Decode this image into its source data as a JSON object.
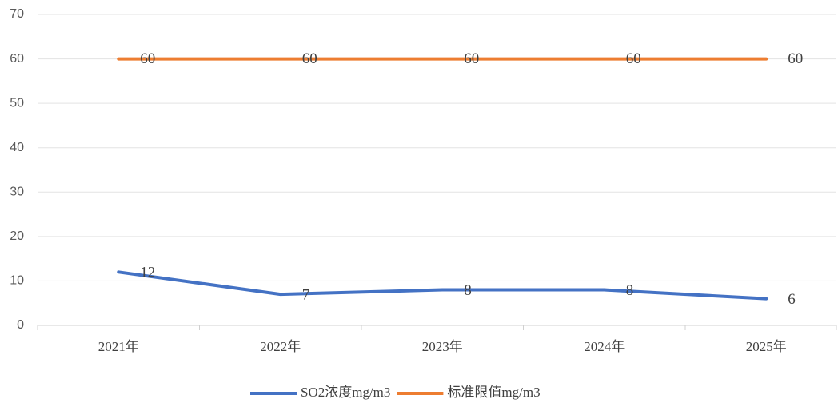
{
  "chart_data": {
    "type": "line",
    "categories": [
      "2021年",
      "2022年",
      "2023年",
      "2024年",
      "2025年"
    ],
    "series": [
      {
        "name": "SO2浓度mg/m3",
        "color": "#4472c4",
        "values": [
          12,
          7,
          8,
          8,
          6
        ]
      },
      {
        "name": "标准限值mg/m3",
        "color": "#ed7d31",
        "values": [
          60,
          60,
          60,
          60,
          60
        ]
      }
    ],
    "ylim": [
      0,
      70
    ],
    "yticks": [
      0,
      10,
      20,
      30,
      40,
      50,
      60,
      70
    ],
    "grid": true,
    "legend": "bottom"
  }
}
